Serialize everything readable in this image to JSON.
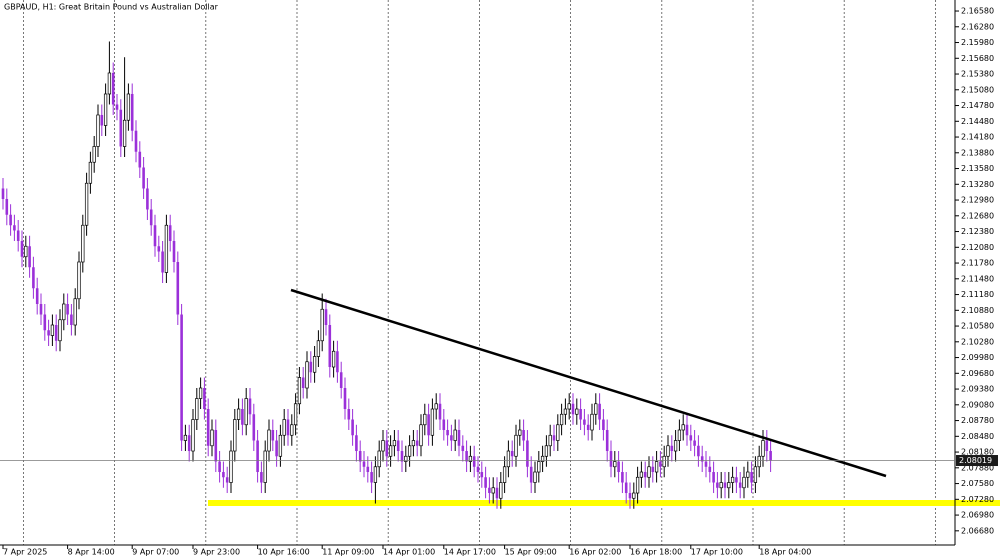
{
  "chart_data": {
    "type": "candlestick",
    "title": "GBPAUD, H1: Great Britain Pound vs Australian Dollar",
    "up_color": "#ffffff",
    "up_edge": "#000000",
    "down_color": "#9b30d9",
    "ylim": [
      2.0641,
      2.1679
    ],
    "last_price": 2.08019,
    "categories": [
      "7 Apr 2025",
      null,
      null,
      null,
      null,
      null,
      null,
      null,
      null,
      null,
      null,
      null,
      null,
      null,
      null,
      null,
      null,
      "8 Apr 14:00",
      null,
      null,
      null,
      null,
      null,
      null,
      null,
      null,
      null,
      null,
      null,
      null,
      null,
      null,
      null,
      null,
      "9 Apr 07:00",
      null,
      null,
      null,
      null,
      null,
      null,
      null,
      null,
      null,
      null,
      null,
      null,
      null,
      null,
      null,
      "9 Apr 23:00",
      null,
      null,
      null,
      null,
      null,
      null,
      null,
      null,
      null,
      null,
      null,
      null,
      null,
      null,
      null,
      null,
      "10 Apr 16:00",
      null,
      null,
      null,
      null,
      null,
      null,
      null,
      null,
      null,
      null,
      null,
      null,
      null,
      null,
      null,
      null,
      "11 Apr 09:00",
      null,
      null,
      null,
      null,
      null,
      null,
      null,
      null,
      null,
      null,
      null,
      null,
      null,
      null,
      null,
      "14 Apr 01:00",
      null,
      null,
      null,
      null,
      null,
      null,
      null,
      null,
      null,
      null,
      null,
      null,
      null,
      null,
      null,
      "14 Apr 17:00",
      null,
      null,
      null,
      null,
      null,
      null,
      null,
      null,
      null,
      null,
      null,
      null,
      null,
      null,
      null,
      "15 Apr 09:00",
      null,
      null,
      null,
      null,
      null,
      null,
      null,
      null,
      null,
      null,
      null,
      null,
      null,
      null,
      null,
      null,
      "16 Apr 02:00",
      null,
      null,
      null,
      null,
      null,
      null,
      null,
      null,
      null,
      null,
      null,
      null,
      null,
      null,
      null,
      "16 Apr 18:00",
      null,
      null,
      null,
      null,
      null,
      null,
      null,
      null,
      null,
      null,
      null,
      null,
      null,
      null,
      null,
      "17 Apr 10:00",
      null,
      null,
      null,
      null,
      null,
      null,
      null,
      null,
      null,
      null,
      null,
      null,
      null,
      null,
      null,
      null,
      null,
      "18 Apr 04:00",
      null,
      null,
      null
    ],
    "open": [
      2.132,
      2.13,
      2.127,
      2.125,
      2.124,
      2.122,
      2.119,
      2.121,
      2.117,
      2.113,
      2.11,
      2.108,
      2.105,
      2.104,
      2.106,
      2.103,
      2.107,
      2.11,
      2.108,
      2.106,
      2.111,
      2.118,
      2.125,
      2.133,
      2.137,
      2.14,
      2.146,
      2.144,
      2.15,
      2.154,
      2.148,
      2.147,
      2.14,
      2.145,
      2.15,
      2.143,
      2.139,
      2.136,
      2.132,
      2.128,
      2.125,
      2.121,
      2.12,
      2.116,
      2.125,
      2.122,
      2.118,
      2.108,
      2.084,
      2.085,
      2.082,
      2.088,
      2.092,
      2.094,
      2.09,
      2.083,
      2.086,
      2.08,
      2.078,
      2.077,
      2.076,
      2.082,
      2.088,
      2.09,
      2.087,
      2.092,
      2.089,
      2.084,
      2.078,
      2.076,
      2.082,
      2.086,
      2.084,
      2.081,
      2.085,
      2.088,
      2.085,
      2.087,
      2.091,
      2.096,
      2.094,
      2.099,
      2.097,
      2.1,
      2.103,
      2.109,
      2.106,
      2.098,
      2.101,
      2.097,
      2.094,
      2.09,
      2.088,
      2.085,
      2.082,
      2.08,
      2.079,
      2.078,
      2.076,
      2.079,
      2.082,
      2.084,
      2.081,
      2.083,
      2.084,
      2.082,
      2.08,
      2.081,
      2.083,
      2.084,
      2.083,
      2.087,
      2.089,
      2.085,
      2.09,
      2.091,
      2.088,
      2.086,
      2.085,
      2.084,
      2.086,
      2.083,
      2.082,
      2.08,
      2.081,
      2.079,
      2.078,
      2.077,
      2.075,
      2.074,
      2.075,
      2.073,
      2.076,
      2.079,
      2.082,
      2.081,
      2.085,
      2.086,
      2.084,
      2.079,
      2.076,
      2.078,
      2.08,
      2.081,
      2.083,
      2.085,
      2.084,
      2.087,
      2.089,
      2.09,
      2.091,
      2.089,
      2.09,
      2.088,
      2.087,
      2.086,
      2.089,
      2.091,
      2.088,
      2.086,
      2.082,
      2.079,
      2.08,
      2.078,
      2.076,
      2.074,
      2.073,
      2.074,
      2.077,
      2.078,
      2.077,
      2.079,
      2.078,
      2.08,
      2.079,
      2.081,
      2.083,
      2.082,
      2.084,
      2.086,
      2.087,
      2.085,
      2.084,
      2.083,
      2.081,
      2.08,
      2.079,
      2.078,
      2.076,
      2.075,
      2.076,
      2.075,
      2.076,
      2.077,
      2.076,
      2.075,
      2.077,
      2.078,
      2.076,
      2.079,
      2.081,
      2.084,
      2.082
    ],
    "high": [
      2.134,
      2.132,
      2.129,
      2.127,
      2.126,
      2.124,
      2.123,
      2.123,
      2.119,
      2.115,
      2.112,
      2.11,
      2.107,
      2.108,
      2.108,
      2.109,
      2.112,
      2.112,
      2.11,
      2.113,
      2.12,
      2.127,
      2.135,
      2.139,
      2.142,
      2.148,
      2.148,
      2.152,
      2.16,
      2.156,
      2.15,
      2.149,
      2.157,
      2.152,
      2.152,
      2.145,
      2.141,
      2.138,
      2.134,
      2.13,
      2.127,
      2.123,
      2.122,
      2.127,
      2.127,
      2.124,
      2.12,
      2.11,
      2.087,
      2.087,
      2.09,
      2.094,
      2.096,
      2.096,
      2.092,
      2.088,
      2.088,
      2.082,
      2.08,
      2.079,
      2.084,
      2.09,
      2.092,
      2.092,
      2.094,
      2.094,
      2.091,
      2.086,
      2.08,
      2.084,
      2.088,
      2.088,
      2.086,
      2.087,
      2.09,
      2.09,
      2.089,
      2.093,
      2.098,
      2.098,
      2.101,
      2.101,
      2.102,
      2.105,
      2.112,
      2.111,
      2.108,
      2.103,
      2.103,
      2.099,
      2.096,
      2.092,
      2.09,
      2.087,
      2.084,
      2.082,
      2.081,
      2.08,
      2.081,
      2.084,
      2.086,
      2.086,
      2.085,
      2.086,
      2.086,
      2.084,
      2.083,
      2.085,
      2.086,
      2.086,
      2.089,
      2.091,
      2.091,
      2.092,
      2.093,
      2.093,
      2.09,
      2.088,
      2.087,
      2.088,
      2.088,
      2.085,
      2.084,
      2.083,
      2.083,
      2.081,
      2.08,
      2.079,
      2.077,
      2.077,
      2.077,
      2.078,
      2.081,
      2.084,
      2.084,
      2.087,
      2.088,
      2.088,
      2.086,
      2.081,
      2.08,
      2.082,
      2.083,
      2.085,
      2.087,
      2.087,
      2.089,
      2.091,
      2.092,
      2.093,
      2.093,
      2.092,
      2.092,
      2.09,
      2.089,
      2.091,
      2.093,
      2.093,
      2.09,
      2.088,
      2.084,
      2.082,
      2.082,
      2.08,
      2.078,
      2.076,
      2.076,
      2.079,
      2.08,
      2.08,
      2.081,
      2.081,
      2.082,
      2.082,
      2.083,
      2.085,
      2.085,
      2.086,
      2.088,
      2.089,
      2.089,
      2.087,
      2.086,
      2.085,
      2.083,
      2.082,
      2.081,
      2.08,
      2.078,
      2.078,
      2.078,
      2.078,
      2.079,
      2.079,
      2.078,
      2.079,
      2.08,
      2.08,
      2.081,
      2.083,
      2.086,
      2.086,
      2.084
    ],
    "low": [
      2.128,
      2.125,
      2.123,
      2.122,
      2.12,
      2.117,
      2.117,
      2.115,
      2.111,
      2.108,
      2.106,
      2.103,
      2.102,
      2.102,
      2.101,
      2.101,
      2.105,
      2.106,
      2.104,
      2.104,
      2.109,
      2.116,
      2.123,
      2.131,
      2.135,
      2.138,
      2.142,
      2.142,
      2.148,
      2.146,
      2.145,
      2.138,
      2.138,
      2.143,
      2.141,
      2.137,
      2.134,
      2.13,
      2.126,
      2.123,
      2.119,
      2.118,
      2.114,
      2.114,
      2.12,
      2.116,
      2.106,
      2.082,
      2.082,
      2.08,
      2.08,
      2.086,
      2.09,
      2.088,
      2.081,
      2.081,
      2.078,
      2.076,
      2.075,
      2.074,
      2.074,
      2.08,
      2.086,
      2.085,
      2.085,
      2.087,
      2.082,
      2.076,
      2.074,
      2.074,
      2.08,
      2.082,
      2.079,
      2.079,
      2.083,
      2.083,
      2.083,
      2.085,
      2.089,
      2.092,
      2.092,
      2.095,
      2.095,
      2.098,
      2.101,
      2.104,
      2.096,
      2.096,
      2.095,
      2.092,
      2.088,
      2.086,
      2.083,
      2.08,
      2.078,
      2.077,
      2.076,
      2.074,
      2.072,
      2.077,
      2.08,
      2.079,
      2.079,
      2.081,
      2.08,
      2.078,
      2.078,
      2.079,
      2.081,
      2.081,
      2.081,
      2.085,
      2.083,
      2.083,
      2.088,
      2.086,
      2.084,
      2.083,
      2.082,
      2.082,
      2.081,
      2.08,
      2.078,
      2.078,
      2.077,
      2.076,
      2.075,
      2.073,
      2.072,
      2.072,
      2.071,
      2.071,
      2.074,
      2.077,
      2.079,
      2.079,
      2.083,
      2.082,
      2.077,
      2.074,
      2.074,
      2.076,
      2.078,
      2.079,
      2.081,
      2.082,
      2.082,
      2.085,
      2.087,
      2.088,
      2.087,
      2.087,
      2.086,
      2.085,
      2.084,
      2.084,
      2.087,
      2.086,
      2.084,
      2.08,
      2.077,
      2.077,
      2.076,
      2.074,
      2.072,
      2.071,
      2.071,
      2.072,
      2.075,
      2.075,
      2.075,
      2.076,
      2.076,
      2.077,
      2.077,
      2.079,
      2.08,
      2.08,
      2.082,
      2.084,
      2.083,
      2.082,
      2.081,
      2.079,
      2.078,
      2.077,
      2.076,
      2.074,
      2.073,
      2.073,
      2.073,
      2.073,
      2.074,
      2.074,
      2.073,
      2.073,
      2.075,
      2.074,
      2.074,
      2.077,
      2.079,
      2.08,
      2.078
    ],
    "close": [
      2.13,
      2.127,
      2.125,
      2.124,
      2.122,
      2.119,
      2.121,
      2.117,
      2.113,
      2.11,
      2.108,
      2.105,
      2.104,
      2.106,
      2.103,
      2.107,
      2.11,
      2.108,
      2.106,
      2.111,
      2.118,
      2.125,
      2.133,
      2.137,
      2.14,
      2.146,
      2.144,
      2.15,
      2.154,
      2.148,
      2.147,
      2.14,
      2.145,
      2.15,
      2.143,
      2.139,
      2.136,
      2.132,
      2.128,
      2.125,
      2.121,
      2.12,
      2.116,
      2.125,
      2.122,
      2.118,
      2.108,
      2.084,
      2.085,
      2.082,
      2.088,
      2.092,
      2.094,
      2.09,
      2.083,
      2.086,
      2.08,
      2.078,
      2.077,
      2.076,
      2.082,
      2.088,
      2.09,
      2.087,
      2.092,
      2.089,
      2.084,
      2.078,
      2.076,
      2.082,
      2.086,
      2.084,
      2.081,
      2.085,
      2.088,
      2.085,
      2.087,
      2.091,
      2.096,
      2.094,
      2.099,
      2.097,
      2.1,
      2.103,
      2.109,
      2.106,
      2.098,
      2.101,
      2.097,
      2.094,
      2.09,
      2.088,
      2.085,
      2.082,
      2.08,
      2.079,
      2.078,
      2.076,
      2.079,
      2.082,
      2.084,
      2.081,
      2.083,
      2.084,
      2.082,
      2.08,
      2.081,
      2.083,
      2.084,
      2.083,
      2.087,
      2.089,
      2.085,
      2.09,
      2.091,
      2.088,
      2.086,
      2.085,
      2.084,
      2.086,
      2.083,
      2.082,
      2.08,
      2.081,
      2.079,
      2.078,
      2.077,
      2.075,
      2.074,
      2.075,
      2.073,
      2.076,
      2.079,
      2.082,
      2.081,
      2.085,
      2.086,
      2.084,
      2.079,
      2.076,
      2.078,
      2.08,
      2.081,
      2.083,
      2.085,
      2.084,
      2.087,
      2.089,
      2.09,
      2.091,
      2.089,
      2.09,
      2.088,
      2.087,
      2.086,
      2.089,
      2.091,
      2.088,
      2.086,
      2.082,
      2.079,
      2.08,
      2.078,
      2.076,
      2.074,
      2.073,
      2.074,
      2.077,
      2.078,
      2.077,
      2.079,
      2.078,
      2.08,
      2.079,
      2.081,
      2.083,
      2.082,
      2.084,
      2.086,
      2.087,
      2.085,
      2.084,
      2.083,
      2.081,
      2.08,
      2.079,
      2.078,
      2.076,
      2.075,
      2.076,
      2.075,
      2.076,
      2.077,
      2.076,
      2.075,
      2.077,
      2.078,
      2.076,
      2.079,
      2.081,
      2.084,
      2.082,
      2.08019
    ],
    "yticks": [
      {
        "value": 2.1658,
        "label": "2.16580"
      },
      {
        "value": 2.1628,
        "label": "2.16280"
      },
      {
        "value": 2.1598,
        "label": "2.15980"
      },
      {
        "value": 2.1568,
        "label": "2.15680"
      },
      {
        "value": 2.1538,
        "label": "2.15380"
      },
      {
        "value": 2.1508,
        "label": "2.15080"
      },
      {
        "value": 2.1478,
        "label": "2.14780"
      },
      {
        "value": 2.1448,
        "label": "2.14480"
      },
      {
        "value": 2.1418,
        "label": "2.14180"
      },
      {
        "value": 2.1388,
        "label": "2.13880"
      },
      {
        "value": 2.1358,
        "label": "2.13580"
      },
      {
        "value": 2.1328,
        "label": "2.13280"
      },
      {
        "value": 2.1298,
        "label": "2.12980"
      },
      {
        "value": 2.1268,
        "label": "2.12680"
      },
      {
        "value": 2.1238,
        "label": "2.12380"
      },
      {
        "value": 2.1208,
        "label": "2.12080"
      },
      {
        "value": 2.1178,
        "label": "2.11780"
      },
      {
        "value": 2.1148,
        "label": "2.11480"
      },
      {
        "value": 2.1118,
        "label": "2.11180"
      },
      {
        "value": 2.1088,
        "label": "2.10880"
      },
      {
        "value": 2.1058,
        "label": "2.10580"
      },
      {
        "value": 2.1028,
        "label": "2.10280"
      },
      {
        "value": 2.0998,
        "label": "2.09980"
      },
      {
        "value": 2.0968,
        "label": "2.09680"
      },
      {
        "value": 2.0938,
        "label": "2.09380"
      },
      {
        "value": 2.0908,
        "label": "2.09080"
      },
      {
        "value": 2.0878,
        "label": "2.08780"
      },
      {
        "value": 2.0848,
        "label": "2.08480"
      },
      {
        "value": 2.0818,
        "label": "2.08180"
      },
      {
        "value": 2.0788,
        "label": "2.07880"
      },
      {
        "value": 2.0758,
        "label": "2.07580"
      },
      {
        "value": 2.0728,
        "label": "2.07280"
      },
      {
        "value": 2.0698,
        "label": "2.06980"
      },
      {
        "value": 2.0668,
        "label": "2.06680"
      }
    ]
  }
}
